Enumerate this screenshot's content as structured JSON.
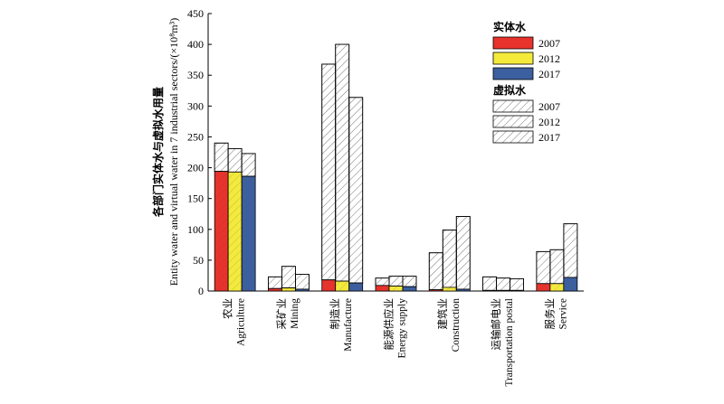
{
  "chart_data": {
    "type": "bar",
    "ylabel_line1": "各部门实体水与虚拟水用量",
    "ylabel_line2": "Entity water and virtual water in 7 industrial sectors/(×10⁸m³)",
    "ylim": [
      0,
      450
    ],
    "yticks": [
      "0",
      "50",
      "100",
      "150",
      "200",
      "250",
      "300",
      "350",
      "400",
      "450"
    ],
    "categories": [
      {
        "zh": "农业",
        "en": "Agriculture"
      },
      {
        "zh": "采矿业",
        "en": "Mining"
      },
      {
        "zh": "制造业",
        "en": "Manufacture"
      },
      {
        "zh": "能源供应业",
        "en": "Energy supply"
      },
      {
        "zh": "建筑业",
        "en": "Construction"
      },
      {
        "zh": "运输邮电业",
        "en": "Transportation postal"
      },
      {
        "zh": "服务业",
        "en": "Service"
      }
    ],
    "years": [
      "2007",
      "2012",
      "2017"
    ],
    "entity_water": {
      "2007": [
        194,
        4,
        18,
        9,
        2,
        1,
        12
      ],
      "2012": [
        193,
        5,
        16,
        8,
        6,
        1,
        12
      ],
      "2017": [
        186,
        3,
        13,
        7,
        3,
        1,
        22
      ]
    },
    "virtual_water": {
      "2007": [
        46,
        19,
        350,
        12,
        60,
        22,
        52
      ],
      "2012": [
        38,
        35,
        384,
        16,
        93,
        20,
        55
      ],
      "2017": [
        37,
        24,
        301,
        17,
        118,
        19,
        87
      ]
    },
    "legend": {
      "entity_title": "实体水",
      "virtual_title": "虚拟水",
      "entity_items": [
        "2007",
        "2012",
        "2017"
      ],
      "virtual_items": [
        "2007",
        "2012",
        "2017"
      ]
    },
    "colors": {
      "2007": "#e8322c",
      "2012": "#f4ea3c",
      "2017": "#3c5fa0"
    }
  }
}
